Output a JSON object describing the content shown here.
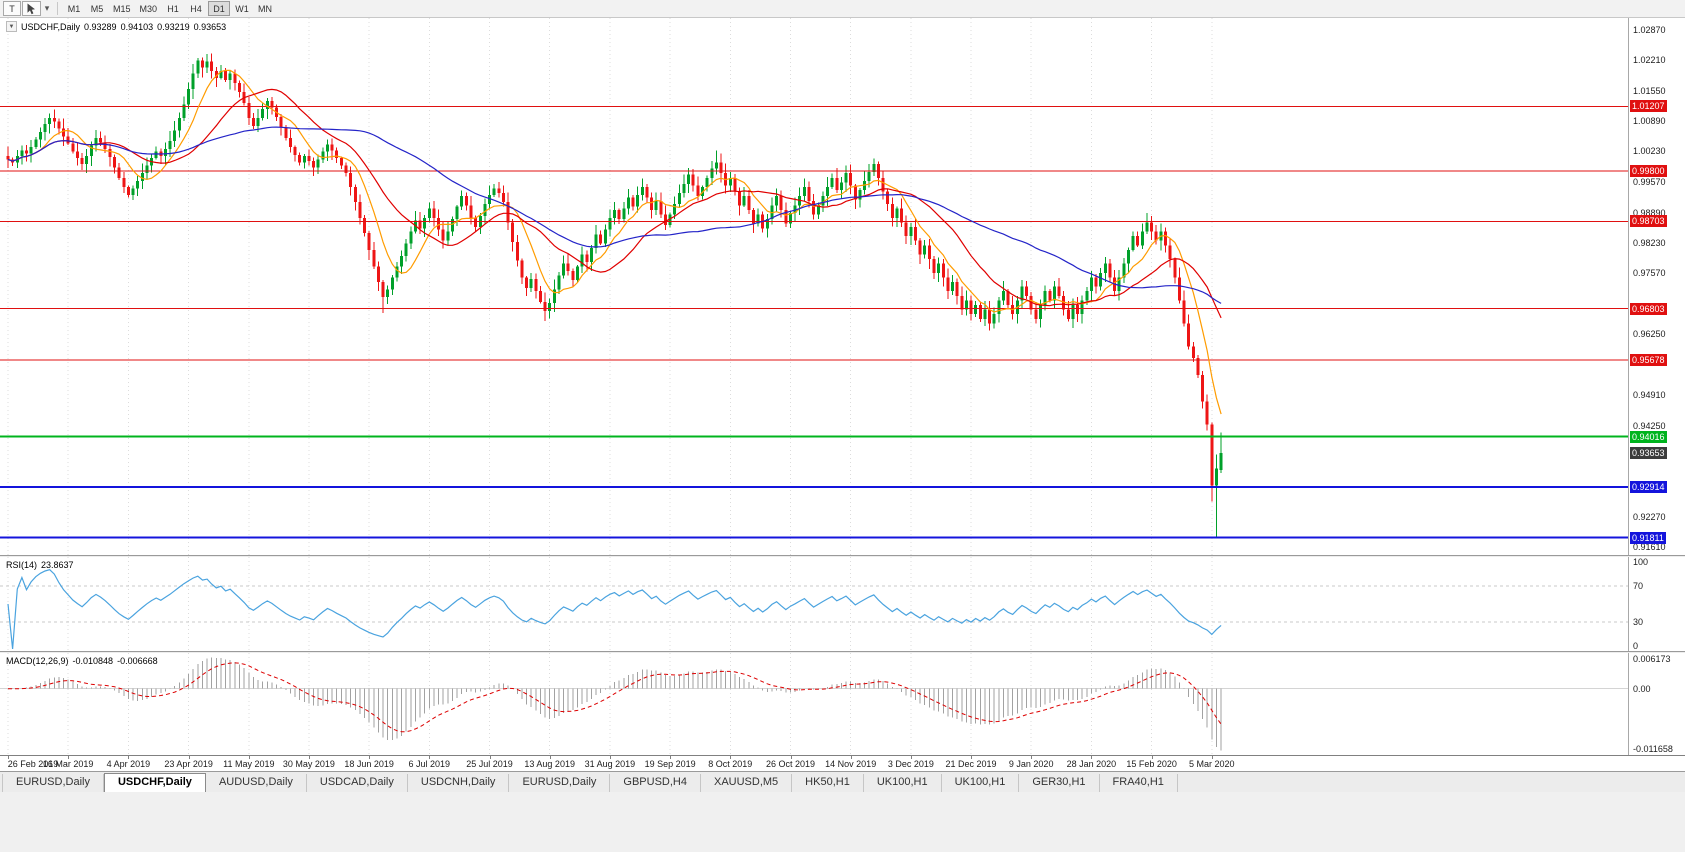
{
  "toolbar": {
    "t_button": "T",
    "dropdown_glyph": "▾",
    "timeframes": [
      "M1",
      "M5",
      "M15",
      "M30",
      "H1",
      "H4",
      "D1",
      "W1",
      "MN"
    ],
    "active_timeframe": "D1"
  },
  "main_panel": {
    "collapse_icon": "▼",
    "title": "USDCHF,Daily",
    "ohlc": {
      "open": "0.93289",
      "high": "0.94103",
      "low": "0.93219",
      "close": "0.93653"
    }
  },
  "rsi_panel": {
    "label": "RSI(14)",
    "value": "23.8637",
    "scale": [
      "100",
      "70",
      "30",
      "0"
    ],
    "levels": [
      70,
      30
    ]
  },
  "macd_panel": {
    "label": "MACD(12,26,9)",
    "value_macd": "-0.010848",
    "value_signal": "-0.006668",
    "scale_top": "0.006173",
    "scale_zero": "0.00",
    "scale_bottom": "-0.011658"
  },
  "price_scale": [
    "1.02870",
    "1.02210",
    "1.01550",
    "1.00890",
    "1.00230",
    "0.99570",
    "0.98890",
    "0.98230",
    "0.97570",
    "0.96910",
    "0.96250",
    "0.95590",
    "0.94910",
    "0.94250",
    "0.93590",
    "0.92930",
    "0.92270",
    "0.91610"
  ],
  "dates": [
    "26 Feb 2019",
    "16 Mar 2019",
    "4 Apr 2019",
    "23 Apr 2019",
    "11 May 2019",
    "30 May 2019",
    "18 Jun 2019",
    "6 Jul 2019",
    "25 Jul 2019",
    "13 Aug 2019",
    "31 Aug 2019",
    "19 Sep 2019",
    "8 Oct 2019",
    "26 Oct 2019",
    "14 Nov 2019",
    "3 Dec 2019",
    "21 Dec 2019",
    "9 Jan 2020",
    "28 Jan 2020",
    "15 Feb 2020",
    "5 Mar 2020"
  ],
  "tabs": {
    "active_index": 1,
    "items": [
      "EURUSD,Daily",
      "USDCHF,Daily",
      "AUDUSD,Daily",
      "USDCAD,Daily",
      "USDCNH,Daily",
      "EURUSD,Daily",
      "GBPUSD,H4",
      "XAUUSD,M5",
      "HK50,H1",
      "UK100,H1",
      "UK100,H1",
      "GER30,H1",
      "FRA40,H1"
    ]
  },
  "chart_data": {
    "type": "candlestick",
    "symbol": "USDCHF",
    "timeframe": "Daily",
    "colors": {
      "up": "#00a02a",
      "down": "#ee1515",
      "ma_fast": "#ff9c00",
      "ma_mid": "#e00000",
      "ma_slow": "#2424c8",
      "rsi": "#4aa3df",
      "macd_hist": "#a2a2a2",
      "macd_signal": "#dd0000",
      "red_level": "#e01010",
      "green_level": "#00b41e",
      "blue_level": "#1414dc",
      "current_tag_bg": "#3c3c3c"
    },
    "hlines": [
      {
        "value": 1.01207,
        "label": "1.01207",
        "color": "red"
      },
      {
        "value": 0.998,
        "label": "0.99800",
        "color": "red"
      },
      {
        "value": 0.98703,
        "label": "0.98703",
        "color": "red"
      },
      {
        "value": 0.96803,
        "label": "0.96803",
        "color": "red"
      },
      {
        "value": 0.95678,
        "label": "0.95678",
        "color": "red"
      },
      {
        "value": 0.94016,
        "label": "0.94016",
        "color": "green"
      },
      {
        "value": 0.92914,
        "label": "0.92914",
        "color": "blue"
      },
      {
        "value": 0.91811,
        "label": "0.91811",
        "color": "blue"
      }
    ],
    "current": {
      "value": 0.93653,
      "label": "0.93653"
    },
    "last_candle": {
      "open": 0.93289,
      "high": 0.94103,
      "low": 0.93219,
      "close": 0.93653
    },
    "ma_periods": {
      "fast": 8,
      "mid": 20,
      "slow": 50
    },
    "rsi_period": 14,
    "macd_params": [
      12,
      26,
      9
    ],
    "closes": [
      1.0005,
      0.9998,
      1.0012,
      1.0025,
      1.0018,
      1.0032,
      1.0048,
      1.0065,
      1.0082,
      1.0095,
      1.0088,
      1.0072,
      1.0055,
      1.004,
      1.0022,
      1.0008,
      0.9995,
      1.0012,
      1.0035,
      1.0052,
      1.0042,
      1.0028,
      1.001,
      0.9988,
      0.9965,
      0.9945,
      0.9928,
      0.9942,
      0.9958,
      0.9975,
      0.9992,
      1.0008,
      1.0022,
      1.0012,
      1.0028,
      1.0045,
      1.0068,
      1.0095,
      1.0125,
      1.0158,
      1.0192,
      1.022,
      1.0205,
      1.0218,
      1.0198,
      1.0182,
      1.0198,
      1.0178,
      1.0192,
      1.0172,
      1.0152,
      1.0128,
      1.0095,
      1.0078,
      1.0095,
      1.0115,
      1.0132,
      1.0118,
      1.0098,
      1.0075,
      1.0052,
      1.0032,
      1.0015,
      0.9998,
      1.0012,
      1.0002,
      0.9988,
      1.0005,
      1.0022,
      1.0038,
      1.0025,
      1.0008,
      0.9992,
      0.9975,
      0.9945,
      0.9912,
      0.9878,
      0.9845,
      0.9808,
      0.9772,
      0.9738,
      0.9705,
      0.9722,
      0.9748,
      0.9772,
      0.9795,
      0.9822,
      0.9848,
      0.9872,
      0.9855,
      0.9878,
      0.9898,
      0.9878,
      0.9852,
      0.9828,
      0.9848,
      0.9875,
      0.9902,
      0.9925,
      0.9905,
      0.9878,
      0.9858,
      0.9882,
      0.9908,
      0.9928,
      0.9942,
      0.9932,
      0.9912,
      0.9868,
      0.9825,
      0.9785,
      0.9748,
      0.9725,
      0.9745,
      0.9718,
      0.9695,
      0.9675,
      0.9692,
      0.9722,
      0.9752,
      0.9778,
      0.9762,
      0.9742,
      0.9772,
      0.9798,
      0.9782,
      0.9812,
      0.9842,
      0.9822,
      0.9852,
      0.9878,
      0.9895,
      0.9875,
      0.9898,
      0.9922,
      0.9902,
      0.9928,
      0.9945,
      0.9922,
      0.9895,
      0.9915,
      0.9885,
      0.9862,
      0.9885,
      0.9908,
      0.9932,
      0.9952,
      0.9972,
      0.9948,
      0.9925,
      0.9945,
      0.9965,
      0.9985,
      0.9998,
      0.9975,
      0.9948,
      0.9965,
      0.9935,
      0.9905,
      0.9925,
      0.9895,
      0.9865,
      0.9885,
      0.9855,
      0.9875,
      0.9905,
      0.9925,
      0.9895,
      0.9865,
      0.9888,
      0.9905,
      0.9925,
      0.9945,
      0.9915,
      0.9885,
      0.9905,
      0.9925,
      0.9945,
      0.9965,
      0.9938,
      0.9955,
      0.9975,
      0.9948,
      0.9918,
      0.9938,
      0.9958,
      0.9978,
      0.9995,
      0.9965,
      0.9935,
      0.9908,
      0.9878,
      0.9898,
      0.9868,
      0.9838,
      0.9858,
      0.9828,
      0.9798,
      0.9818,
      0.9788,
      0.9758,
      0.9778,
      0.9748,
      0.9718,
      0.9738,
      0.9708,
      0.9678,
      0.9698,
      0.9668,
      0.9688,
      0.9658,
      0.9678,
      0.9648,
      0.9668,
      0.9698,
      0.9718,
      0.9688,
      0.9668,
      0.9698,
      0.9728,
      0.9708,
      0.9678,
      0.9658,
      0.9688,
      0.9718,
      0.9698,
      0.9728,
      0.9708,
      0.9678,
      0.9658,
      0.9688,
      0.9668,
      0.9698,
      0.9718,
      0.9748,
      0.9728,
      0.9758,
      0.9778,
      0.9748,
      0.9718,
      0.9748,
      0.9778,
      0.9808,
      0.9838,
      0.9818,
      0.9848,
      0.9868,
      0.9848,
      0.9828,
      0.9848,
      0.9818,
      0.9788,
      0.9748,
      0.9698,
      0.9648,
      0.9598,
      0.9572,
      0.9535,
      0.9478,
      0.9428,
      0.9295,
      0.9332,
      0.93653
    ],
    "overrides": {
      "9": {
        "h": 1.0105
      },
      "41": {
        "h": 1.0226
      },
      "81": {
        "l": 0.9671
      },
      "117": {
        "l": 0.9659
      },
      "153": {
        "h": 1.0025
      },
      "260": {
        "l": 0.926
      },
      "261": {
        "l": 0.9182,
        "h": 0.9362
      },
      "262": {
        "o": 0.93289,
        "h": 0.94103,
        "l": 0.93219,
        "c": 0.93653
      }
    }
  }
}
